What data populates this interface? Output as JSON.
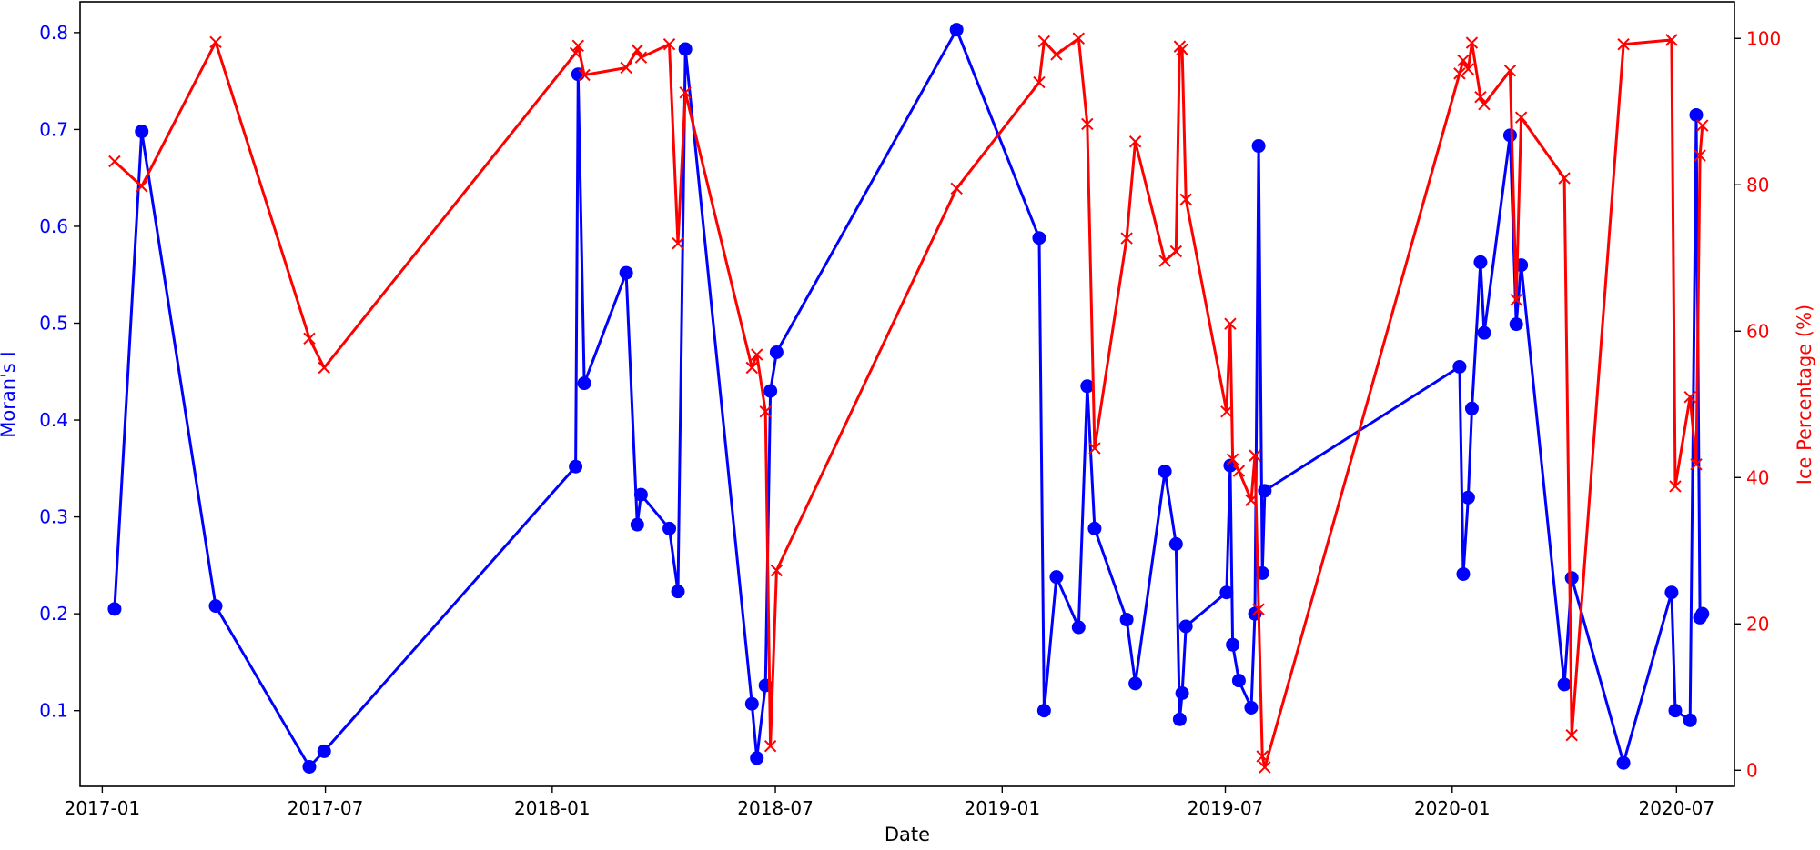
{
  "chart_data": {
    "type": "line",
    "xlabel": "Date",
    "ylabel_left": "Moran's I",
    "ylabel_right": "Ice Percentage (%)",
    "x_range": [
      "2016-12-14",
      "2020-08-17"
    ],
    "x_ticks": [
      "2017-01-01",
      "2017-07-01",
      "2018-01-01",
      "2018-07-01",
      "2019-01-01",
      "2019-07-01",
      "2020-01-01",
      "2020-07-01"
    ],
    "x_tick_labels": [
      "2017-01",
      "2017-07",
      "2018-01",
      "2018-07",
      "2019-01",
      "2019-07",
      "2020-01",
      "2020-07"
    ],
    "ylim_left": [
      0.0218,
      0.8318
    ],
    "yticks_left": [
      0.1,
      0.2,
      0.3,
      0.4,
      0.5,
      0.6,
      0.7,
      0.8
    ],
    "ytick_labels_left": [
      "0.1",
      "0.2",
      "0.3",
      "0.4",
      "0.5",
      "0.6",
      "0.7",
      "0.8"
    ],
    "ylim_right": [
      -2.2,
      105.0
    ],
    "yticks_right": [
      0,
      20,
      40,
      60,
      80,
      100
    ],
    "ytick_labels_right": [
      "0",
      "20",
      "40",
      "60",
      "80",
      "100"
    ],
    "grid": false,
    "series": [
      {
        "role": "morans_i",
        "axis": "left",
        "color": "#0000ff",
        "marker": "circle",
        "points": [
          [
            "2017-01-11",
            0.205
          ],
          [
            "2017-02-02",
            0.698
          ],
          [
            "2017-04-03",
            0.208
          ],
          [
            "2017-06-18",
            0.042
          ],
          [
            "2017-06-30",
            0.058
          ],
          [
            "2018-01-20",
            0.352
          ],
          [
            "2018-01-22",
            0.757
          ],
          [
            "2018-01-27",
            0.438
          ],
          [
            "2018-03-02",
            0.552
          ],
          [
            "2018-03-11",
            0.292
          ],
          [
            "2018-03-14",
            0.323
          ],
          [
            "2018-04-06",
            0.288
          ],
          [
            "2018-04-13",
            0.223
          ],
          [
            "2018-04-19",
            0.783
          ],
          [
            "2018-06-12",
            0.107
          ],
          [
            "2018-06-16",
            0.051
          ],
          [
            "2018-06-23",
            0.126
          ],
          [
            "2018-06-27",
            0.43
          ],
          [
            "2018-07-02",
            0.47
          ],
          [
            "2018-11-25",
            0.803
          ],
          [
            "2019-01-31",
            0.588
          ],
          [
            "2019-02-04",
            0.1
          ],
          [
            "2019-02-14",
            0.238
          ],
          [
            "2019-03-04",
            0.186
          ],
          [
            "2019-03-11",
            0.435
          ],
          [
            "2019-03-17",
            0.288
          ],
          [
            "2019-04-12",
            0.194
          ],
          [
            "2019-04-19",
            0.128
          ],
          [
            "2019-05-13",
            0.347
          ],
          [
            "2019-05-22",
            0.272
          ],
          [
            "2019-05-25",
            0.091
          ],
          [
            "2019-05-27",
            0.118
          ],
          [
            "2019-05-30",
            0.187
          ],
          [
            "2019-07-02",
            0.222
          ],
          [
            "2019-07-05",
            0.353
          ],
          [
            "2019-07-07",
            0.168
          ],
          [
            "2019-07-12",
            0.131
          ],
          [
            "2019-07-22",
            0.103
          ],
          [
            "2019-07-25",
            0.2
          ],
          [
            "2019-07-28",
            0.683
          ],
          [
            "2019-07-31",
            0.242
          ],
          [
            "2019-08-02",
            0.327
          ],
          [
            "2020-01-07",
            0.455
          ],
          [
            "2020-01-10",
            0.241
          ],
          [
            "2020-01-14",
            0.32
          ],
          [
            "2020-01-17",
            0.412
          ],
          [
            "2020-01-24",
            0.563
          ],
          [
            "2020-01-27",
            0.49
          ],
          [
            "2020-02-17",
            0.694
          ],
          [
            "2020-02-22",
            0.499
          ],
          [
            "2020-02-26",
            0.56
          ],
          [
            "2020-04-01",
            0.127
          ],
          [
            "2020-04-07",
            0.237
          ],
          [
            "2020-05-19",
            0.046
          ],
          [
            "2020-06-27",
            0.222
          ],
          [
            "2020-06-30",
            0.1
          ],
          [
            "2020-07-12",
            0.09
          ],
          [
            "2020-07-17",
            0.715
          ],
          [
            "2020-07-20",
            0.196
          ],
          [
            "2020-07-22",
            0.2
          ]
        ]
      },
      {
        "role": "ice_percentage",
        "axis": "right",
        "color": "#ff0000",
        "marker": "x",
        "points": [
          [
            "2017-01-11",
            83.2
          ],
          [
            "2017-02-02",
            79.8
          ],
          [
            "2017-04-03",
            99.5
          ],
          [
            "2017-06-18",
            59.0
          ],
          [
            "2017-06-30",
            55.0
          ],
          [
            "2018-01-20",
            98.0
          ],
          [
            "2018-01-22",
            99.0
          ],
          [
            "2018-01-27",
            95.0
          ],
          [
            "2018-03-02",
            96.0
          ],
          [
            "2018-03-11",
            98.4
          ],
          [
            "2018-03-14",
            97.4
          ],
          [
            "2018-04-06",
            99.2
          ],
          [
            "2018-04-13",
            72.0
          ],
          [
            "2018-04-19",
            92.6
          ],
          [
            "2018-06-12",
            55.0
          ],
          [
            "2018-06-16",
            56.8
          ],
          [
            "2018-06-23",
            49.0
          ],
          [
            "2018-06-27",
            3.3
          ],
          [
            "2018-07-02",
            27.3
          ],
          [
            "2018-11-25",
            79.5
          ],
          [
            "2019-01-31",
            94.0
          ],
          [
            "2019-02-04",
            99.6
          ],
          [
            "2019-02-14",
            97.8
          ],
          [
            "2019-03-04",
            100.0
          ],
          [
            "2019-03-11",
            88.3
          ],
          [
            "2019-03-17",
            44.0
          ],
          [
            "2019-04-12",
            72.7
          ],
          [
            "2019-04-19",
            85.9
          ],
          [
            "2019-05-13",
            69.6
          ],
          [
            "2019-05-22",
            70.9
          ],
          [
            "2019-05-25",
            98.9
          ],
          [
            "2019-05-27",
            98.5
          ],
          [
            "2019-05-30",
            78.0
          ],
          [
            "2019-07-02",
            49.0
          ],
          [
            "2019-07-05",
            61.0
          ],
          [
            "2019-07-07",
            42.5
          ],
          [
            "2019-07-12",
            40.9
          ],
          [
            "2019-07-22",
            36.9
          ],
          [
            "2019-07-25",
            43.0
          ],
          [
            "2019-07-28",
            22.0
          ],
          [
            "2019-07-31",
            1.9
          ],
          [
            "2019-08-02",
            0.4
          ],
          [
            "2020-01-07",
            95.2
          ],
          [
            "2020-01-10",
            97.0
          ],
          [
            "2020-01-14",
            95.8
          ],
          [
            "2020-01-17",
            99.4
          ],
          [
            "2020-01-24",
            92.0
          ],
          [
            "2020-01-27",
            91.0
          ],
          [
            "2020-02-17",
            95.6
          ],
          [
            "2020-02-22",
            64.3
          ],
          [
            "2020-02-26",
            89.2
          ],
          [
            "2020-04-01",
            80.9
          ],
          [
            "2020-04-07",
            4.8
          ],
          [
            "2020-05-19",
            99.2
          ],
          [
            "2020-06-27",
            99.8
          ],
          [
            "2020-06-30",
            38.8
          ],
          [
            "2020-07-12",
            51.0
          ],
          [
            "2020-07-17",
            41.8
          ],
          [
            "2020-07-20",
            84.0
          ],
          [
            "2020-07-22",
            88.1
          ]
        ]
      }
    ]
  }
}
